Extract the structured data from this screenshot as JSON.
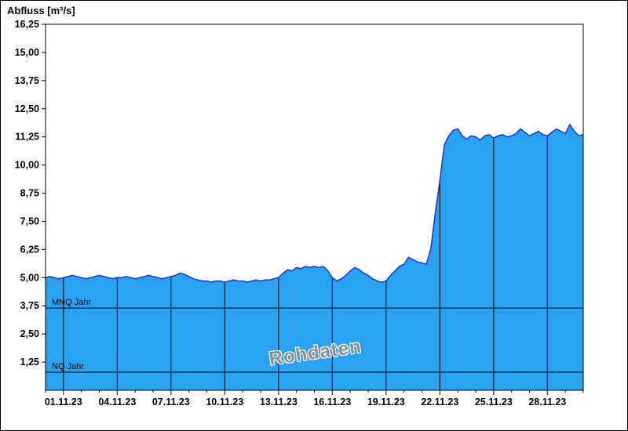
{
  "chart_data": {
    "type": "area",
    "title": "Abfluss [m³/s]",
    "watermark": "Rohdaten",
    "ylim": [
      0,
      16.25
    ],
    "xlim_days": [
      0,
      30
    ],
    "grid": "vertical-only",
    "y_ticks": [
      {
        "value": 16.25,
        "label": "16,25"
      },
      {
        "value": 15.0,
        "label": "15,00"
      },
      {
        "value": 13.75,
        "label": "13,75"
      },
      {
        "value": 12.5,
        "label": "12,50"
      },
      {
        "value": 11.25,
        "label": "11,25"
      },
      {
        "value": 10.0,
        "label": "10,00"
      },
      {
        "value": 8.75,
        "label": "8,75"
      },
      {
        "value": 7.5,
        "label": "7,50"
      },
      {
        "value": 6.25,
        "label": "6,25"
      },
      {
        "value": 5.0,
        "label": "5,00"
      },
      {
        "value": 3.75,
        "label": "3,75"
      },
      {
        "value": 2.5,
        "label": "2,50"
      },
      {
        "value": 1.25,
        "label": "1,25"
      }
    ],
    "x_ticks": [
      {
        "day": 1,
        "label": "01.11.23"
      },
      {
        "day": 4,
        "label": "04.11.23"
      },
      {
        "day": 7,
        "label": "07.11.23"
      },
      {
        "day": 10,
        "label": "10.11.23"
      },
      {
        "day": 13,
        "label": "13.11.23"
      },
      {
        "day": 16,
        "label": "16.11.23"
      },
      {
        "day": 19,
        "label": "19.11.23"
      },
      {
        "day": 22,
        "label": "22.11.23"
      },
      {
        "day": 25,
        "label": "25.11.23"
      },
      {
        "day": 28,
        "label": "28.11.23"
      }
    ],
    "reference_lines": [
      {
        "label": "MNQ Jahr",
        "value": 3.65
      },
      {
        "label": "NQ Jahr",
        "value": 0.8
      }
    ],
    "series": {
      "name": "Abfluss",
      "unit": "m³/s",
      "start_day": 0,
      "step_days": 0.25,
      "values": [
        5.0,
        5.05,
        5.0,
        4.95,
        5.0,
        5.05,
        5.1,
        5.05,
        5.0,
        4.95,
        5.0,
        5.05,
        5.1,
        5.05,
        5.0,
        4.95,
        5.0,
        5.0,
        5.05,
        5.0,
        4.95,
        5.0,
        5.05,
        5.1,
        5.05,
        5.0,
        4.95,
        5.0,
        5.05,
        5.1,
        5.2,
        5.15,
        5.05,
        4.95,
        4.9,
        4.85,
        4.85,
        4.8,
        4.85,
        4.85,
        4.8,
        4.85,
        4.9,
        4.85,
        4.85,
        4.8,
        4.85,
        4.9,
        4.85,
        4.9,
        4.9,
        4.95,
        5.0,
        5.2,
        5.35,
        5.3,
        5.45,
        5.4,
        5.5,
        5.45,
        5.5,
        5.45,
        5.5,
        5.3,
        5.0,
        4.85,
        4.95,
        5.1,
        5.3,
        5.45,
        5.35,
        5.2,
        5.1,
        4.95,
        4.85,
        4.8,
        4.85,
        5.1,
        5.3,
        5.5,
        5.6,
        5.9,
        5.8,
        5.7,
        5.65,
        5.6,
        6.3,
        7.9,
        9.3,
        10.9,
        11.3,
        11.55,
        11.6,
        11.3,
        11.15,
        11.3,
        11.25,
        11.1,
        11.3,
        11.35,
        11.2,
        11.3,
        11.35,
        11.25,
        11.3,
        11.4,
        11.6,
        11.45,
        11.3,
        11.4,
        11.5,
        11.35,
        11.3,
        11.45,
        11.6,
        11.5,
        11.4,
        11.8,
        11.5,
        11.3,
        11.35
      ]
    },
    "colors": {
      "area_fill": "#29a2f2",
      "line": "#1437d0",
      "grid": "#000000",
      "reference_line": "#000000",
      "text": "#000000",
      "watermark": "#8f8f8f"
    }
  }
}
